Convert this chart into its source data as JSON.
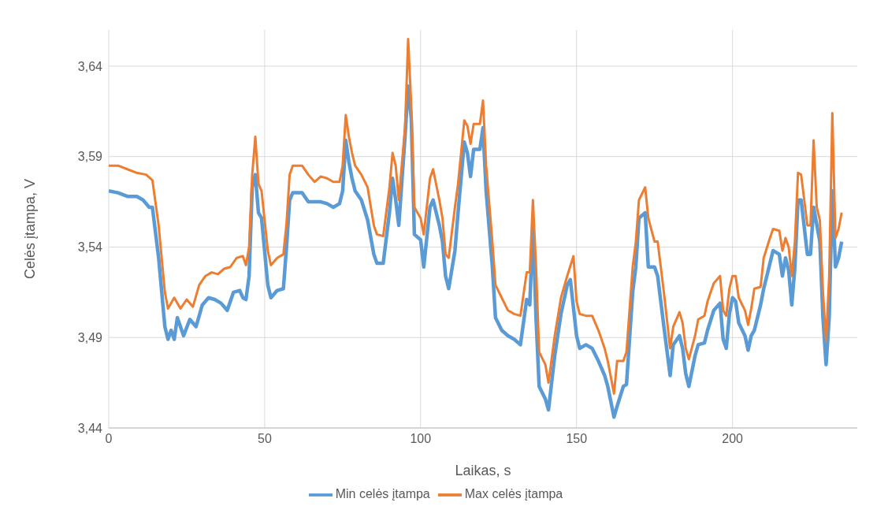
{
  "chart_data": {
    "type": "line",
    "xlabel": "Laikas, s",
    "ylabel": "Celės įtampa, V",
    "xlim": [
      0,
      240
    ],
    "xticks": [
      0,
      50,
      100,
      150,
      200
    ],
    "ylim": [
      3.44,
      3.66
    ],
    "yticks": [
      {
        "value": 3.44,
        "label": "3,44"
      },
      {
        "value": 3.49,
        "label": "3,49"
      },
      {
        "value": 3.54,
        "label": "3,54"
      },
      {
        "value": 3.59,
        "label": "3,59"
      },
      {
        "value": 3.64,
        "label": "3,64"
      }
    ],
    "grid": true,
    "legend": "bottom",
    "marker": "none",
    "line_style": "solid",
    "series": [
      {
        "name": "Min celės įtampa",
        "color": "#5b9bd5",
        "x": [
          0,
          3,
          6,
          9,
          11,
          13,
          14,
          16,
          18,
          19,
          20,
          21,
          22,
          24,
          26,
          28,
          30,
          32,
          34,
          36,
          38,
          40,
          42,
          43,
          44,
          45,
          46,
          47,
          48,
          49,
          51,
          52,
          54,
          56,
          57,
          58,
          59,
          62,
          64,
          66,
          68,
          70,
          72,
          74,
          75,
          76,
          77,
          78,
          79,
          81,
          83,
          85,
          86,
          88,
          90,
          91,
          92,
          93,
          95,
          96,
          97,
          98,
          100,
          101,
          103,
          104,
          106,
          107,
          108,
          109,
          111,
          112,
          114,
          115,
          116,
          117,
          119,
          120,
          121,
          123,
          124,
          126,
          128,
          130,
          132,
          134,
          135,
          136,
          137,
          138,
          140,
          141,
          143,
          145,
          147,
          148,
          150,
          151,
          153,
          155,
          157,
          159,
          160,
          162,
          163,
          165,
          166,
          168,
          169,
          170,
          172,
          173,
          175,
          176,
          178,
          180,
          181,
          183,
          184,
          185,
          186,
          188,
          189,
          191,
          192,
          194,
          196,
          197,
          198,
          199,
          200,
          201,
          202,
          204,
          205,
          206,
          207,
          209,
          210,
          212,
          213,
          215,
          216,
          217,
          218,
          219,
          220,
          221,
          222,
          224,
          225,
          226,
          228,
          229,
          230,
          231,
          232,
          233,
          234,
          235
        ],
        "values": [
          3.571,
          3.57,
          3.568,
          3.568,
          3.566,
          3.562,
          3.562,
          3.534,
          3.496,
          3.489,
          3.494,
          3.489,
          3.501,
          3.491,
          3.5,
          3.496,
          3.508,
          3.512,
          3.511,
          3.509,
          3.505,
          3.515,
          3.516,
          3.512,
          3.511,
          3.524,
          3.573,
          3.58,
          3.559,
          3.556,
          3.519,
          3.512,
          3.516,
          3.517,
          3.54,
          3.566,
          3.57,
          3.57,
          3.565,
          3.565,
          3.565,
          3.564,
          3.562,
          3.564,
          3.571,
          3.599,
          3.587,
          3.578,
          3.571,
          3.566,
          3.555,
          3.536,
          3.531,
          3.531,
          3.559,
          3.578,
          3.566,
          3.552,
          3.601,
          3.629,
          3.611,
          3.547,
          3.544,
          3.529,
          3.562,
          3.566,
          3.552,
          3.543,
          3.524,
          3.517,
          3.538,
          3.559,
          3.598,
          3.592,
          3.579,
          3.594,
          3.594,
          3.606,
          3.571,
          3.529,
          3.501,
          3.494,
          3.491,
          3.489,
          3.486,
          3.511,
          3.508,
          3.552,
          3.501,
          3.463,
          3.456,
          3.45,
          3.48,
          3.503,
          3.519,
          3.522,
          3.491,
          3.484,
          3.486,
          3.484,
          3.477,
          3.469,
          3.463,
          3.446,
          3.452,
          3.463,
          3.464,
          3.515,
          3.529,
          3.556,
          3.559,
          3.529,
          3.529,
          3.524,
          3.496,
          3.469,
          3.486,
          3.491,
          3.484,
          3.47,
          3.463,
          3.48,
          3.486,
          3.487,
          3.494,
          3.505,
          3.509,
          3.489,
          3.484,
          3.503,
          3.512,
          3.51,
          3.498,
          3.491,
          3.483,
          3.491,
          3.494,
          3.508,
          3.517,
          3.531,
          3.538,
          3.536,
          3.524,
          3.534,
          3.527,
          3.508,
          3.529,
          3.566,
          3.566,
          3.536,
          3.536,
          3.562,
          3.543,
          3.501,
          3.475,
          3.501,
          3.571,
          3.529,
          3.534,
          3.543
        ]
      },
      {
        "name": "Max celės įtampa",
        "color": "#ed7d31",
        "x": [
          0,
          3,
          6,
          9,
          12,
          14,
          16,
          18,
          19,
          21,
          23,
          25,
          27,
          29,
          31,
          33,
          35,
          37,
          39,
          41,
          43,
          44,
          45,
          46,
          47,
          48,
          49,
          51,
          52,
          54,
          56,
          57,
          58,
          59,
          62,
          64,
          66,
          68,
          70,
          72,
          74,
          75,
          76,
          77,
          78,
          79,
          81,
          83,
          85,
          86,
          88,
          90,
          91,
          92,
          93,
          95,
          96,
          97,
          98,
          100,
          101,
          103,
          104,
          106,
          107,
          108,
          109,
          111,
          112,
          114,
          115,
          116,
          117,
          119,
          120,
          121,
          123,
          124,
          126,
          128,
          130,
          132,
          134,
          135,
          136,
          137,
          138,
          140,
          141,
          143,
          145,
          147,
          149,
          150,
          151,
          153,
          155,
          157,
          159,
          160,
          162,
          163,
          165,
          166,
          168,
          169,
          170,
          172,
          173,
          175,
          176,
          178,
          180,
          181,
          183,
          184,
          185,
          186,
          188,
          189,
          191,
          192,
          194,
          196,
          197,
          198,
          199,
          200,
          201,
          202,
          204,
          205,
          206,
          207,
          209,
          210,
          212,
          213,
          215,
          216,
          217,
          218,
          219,
          220,
          221,
          222,
          224,
          225,
          226,
          227,
          228,
          229,
          230,
          231,
          232,
          233,
          234,
          235
        ],
        "values": [
          3.585,
          3.585,
          3.583,
          3.581,
          3.58,
          3.577,
          3.552,
          3.515,
          3.506,
          3.512,
          3.506,
          3.511,
          3.507,
          3.519,
          3.524,
          3.526,
          3.525,
          3.528,
          3.529,
          3.534,
          3.535,
          3.53,
          3.54,
          3.58,
          3.601,
          3.575,
          3.571,
          3.538,
          3.53,
          3.534,
          3.536,
          3.553,
          3.58,
          3.585,
          3.585,
          3.58,
          3.576,
          3.579,
          3.578,
          3.576,
          3.576,
          3.585,
          3.613,
          3.601,
          3.592,
          3.585,
          3.58,
          3.573,
          3.552,
          3.547,
          3.546,
          3.573,
          3.592,
          3.585,
          3.566,
          3.606,
          3.655,
          3.618,
          3.562,
          3.556,
          3.547,
          3.578,
          3.583,
          3.566,
          3.556,
          3.536,
          3.534,
          3.562,
          3.575,
          3.61,
          3.607,
          3.597,
          3.608,
          3.608,
          3.621,
          3.585,
          3.543,
          3.519,
          3.512,
          3.505,
          3.503,
          3.502,
          3.526,
          3.526,
          3.566,
          3.529,
          3.482,
          3.475,
          3.465,
          3.491,
          3.512,
          3.524,
          3.535,
          3.51,
          3.503,
          3.502,
          3.502,
          3.494,
          3.484,
          3.477,
          3.459,
          3.477,
          3.477,
          3.482,
          3.529,
          3.543,
          3.566,
          3.573,
          3.556,
          3.543,
          3.543,
          3.515,
          3.484,
          3.496,
          3.504,
          3.498,
          3.484,
          3.478,
          3.491,
          3.5,
          3.502,
          3.51,
          3.52,
          3.524,
          3.505,
          3.502,
          3.517,
          3.524,
          3.524,
          3.512,
          3.505,
          3.497,
          3.506,
          3.517,
          3.518,
          3.534,
          3.545,
          3.55,
          3.549,
          3.538,
          3.545,
          3.54,
          3.524,
          3.543,
          3.581,
          3.58,
          3.552,
          3.552,
          3.599,
          3.562,
          3.555,
          3.515,
          3.488,
          3.524,
          3.614,
          3.545,
          3.55,
          3.559
        ]
      }
    ]
  }
}
